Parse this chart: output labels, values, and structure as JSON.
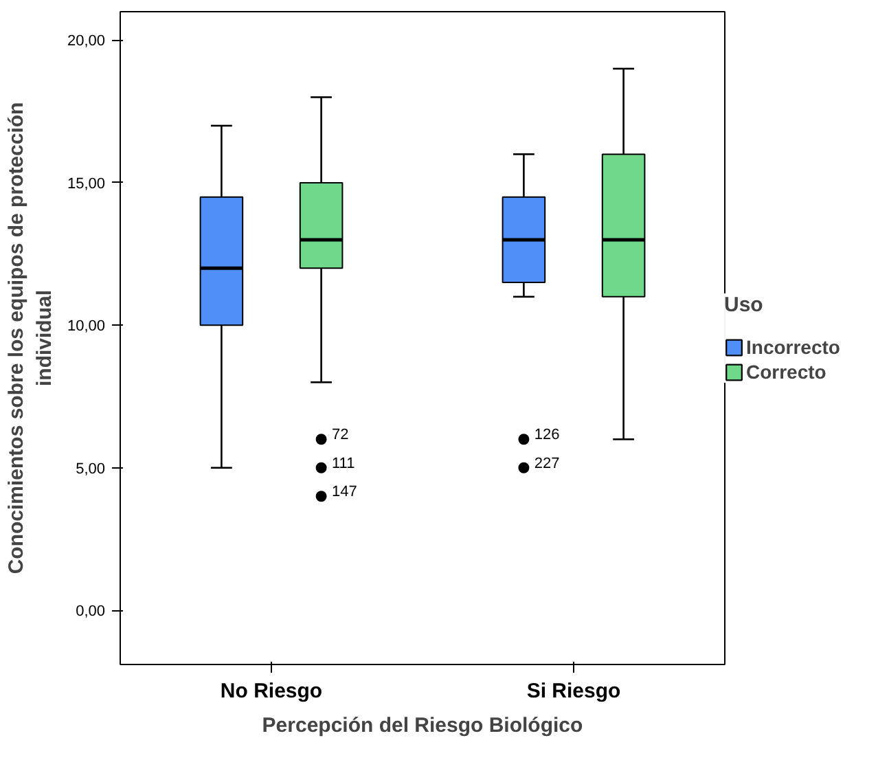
{
  "chart_data": {
    "type": "box",
    "xlabel": "Percepción del Riesgo Biológico",
    "ylabel": "Conocimientos sobre los equipos de protección individual",
    "legend_title": "Uso",
    "legend": "right",
    "grid": false,
    "categories": [
      "No Riesgo",
      "Si Riesgo"
    ],
    "ylim": [
      -1.9,
      21.0
    ],
    "yticks": [
      {
        "value": 0,
        "label": "0,00"
      },
      {
        "value": 5,
        "label": "5,00"
      },
      {
        "value": 10,
        "label": "10,00"
      },
      {
        "value": 15,
        "label": "15,00"
      },
      {
        "value": 20,
        "label": "20,00"
      }
    ],
    "series": [
      {
        "name": "Incorrecto",
        "color": "#4f8ff7",
        "boxes": [
          {
            "low": 5,
            "q1": 10,
            "median": 12,
            "q3": 14.5,
            "high": 17
          },
          {
            "low": 11,
            "q1": 11.5,
            "median": 13,
            "q3": 14.5,
            "high": 16,
            "outliers": [
              6,
              5
            ]
          }
        ]
      },
      {
        "name": "Correcto",
        "color": "#6fd88a",
        "boxes": [
          {
            "low": 8,
            "q1": 12,
            "median": 13,
            "q3": 15,
            "high": 18,
            "outliers": [
              6,
              5,
              4
            ]
          },
          {
            "low": 6,
            "q1": 11,
            "median": 13,
            "q3": 16,
            "high": 19
          }
        ]
      }
    ],
    "annotations": [
      "72",
      "111",
      "147",
      "126",
      "227"
    ]
  }
}
